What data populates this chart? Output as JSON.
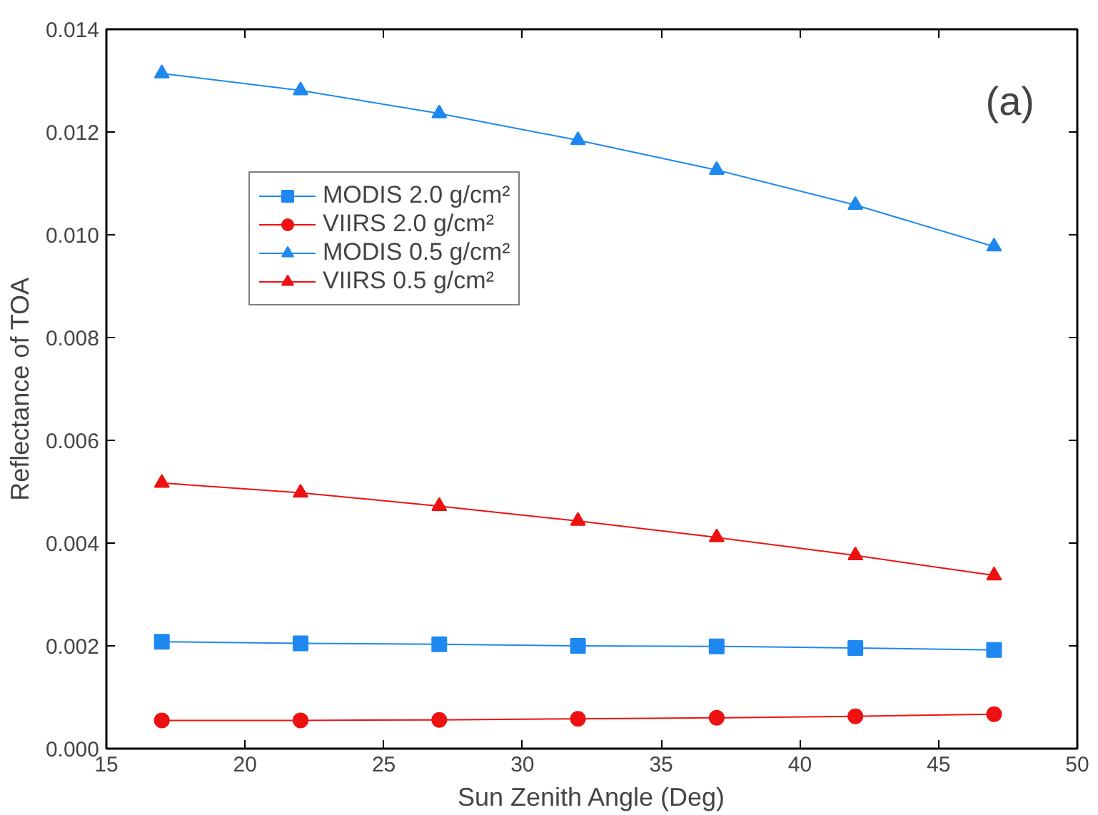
{
  "chart_data": {
    "type": "line",
    "xlabel": "Sun Zenith Angle (Deg)",
    "ylabel": "Reflectance of TOA",
    "annotations": [
      "(a)"
    ],
    "x": [
      17,
      22,
      27,
      32,
      37,
      42,
      47
    ],
    "series": [
      {
        "name": "MODIS 2.0 g/cm²",
        "color": "#1e88f0",
        "marker": "square",
        "values": [
          0.00208,
          0.00205,
          0.00203,
          0.002,
          0.00199,
          0.00196,
          0.00192
        ]
      },
      {
        "name": "VIIRS 2.0 g/cm²",
        "color": "#ee1111",
        "marker": "circle",
        "values": [
          0.00055,
          0.00055,
          0.00056,
          0.00058,
          0.0006,
          0.00063,
          0.00067
        ]
      },
      {
        "name": "MODIS 0.5 g/cm²",
        "color": "#1e88f0",
        "marker": "triangle",
        "values": [
          0.01314,
          0.01281,
          0.01236,
          0.01184,
          0.01126,
          0.01058,
          0.00977
        ]
      },
      {
        "name": "VIIRS 0.5 g/cm²",
        "color": "#ee1111",
        "marker": "triangle",
        "values": [
          0.00517,
          0.00498,
          0.00472,
          0.00443,
          0.00411,
          0.00376,
          0.00337
        ]
      }
    ],
    "xlim": [
      15,
      50
    ],
    "ylim": [
      0,
      0.014
    ],
    "xticks": [
      15,
      20,
      25,
      30,
      35,
      40,
      45,
      50
    ],
    "yticks": [
      {
        "value": 0,
        "label": "0.000"
      },
      {
        "value": 0.002,
        "label": "0.002"
      },
      {
        "value": 0.004,
        "label": "0.004"
      },
      {
        "value": 0.006,
        "label": "0.006"
      },
      {
        "value": 0.008,
        "label": "0.008"
      },
      {
        "value": 0.01,
        "label": "0.010"
      },
      {
        "value": 0.012,
        "label": "0.012"
      },
      {
        "value": 0.014,
        "label": "0.014"
      }
    ],
    "grid": false,
    "legend": "top left",
    "line_style": "solid"
  }
}
